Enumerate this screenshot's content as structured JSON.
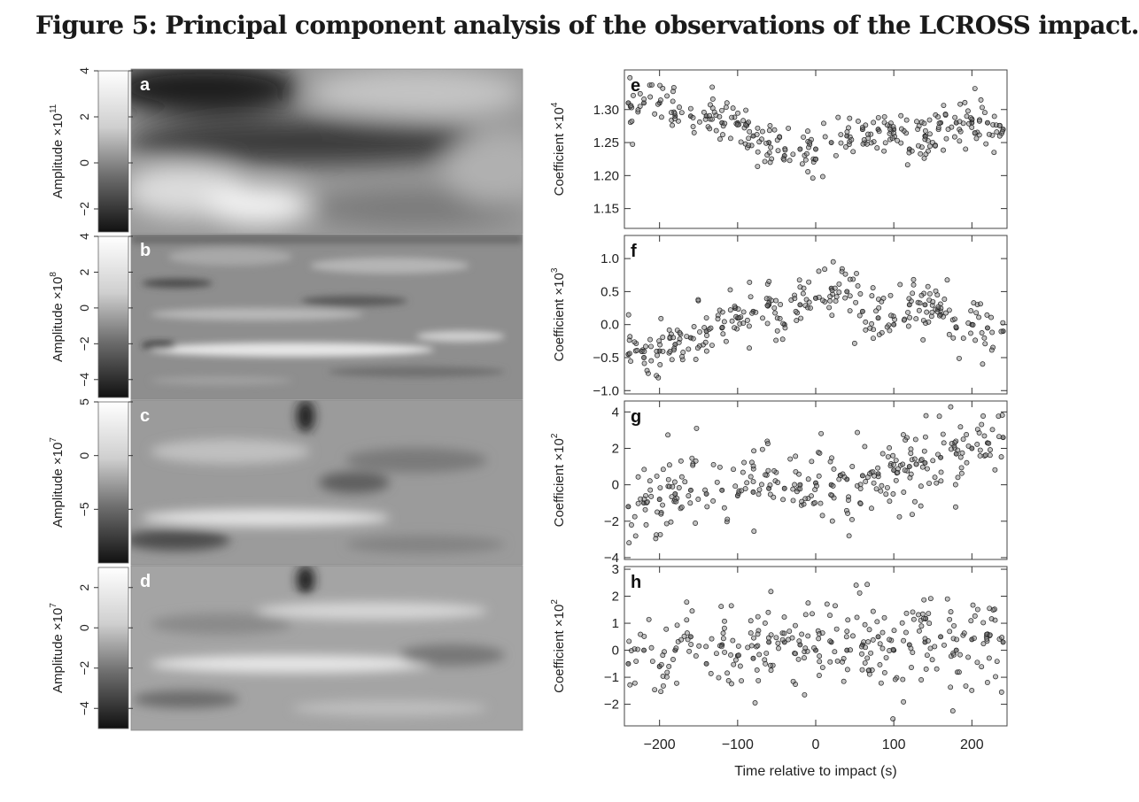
{
  "title": "Figure 5: Principal component analysis of the observations of the LCROSS impact.",
  "left_panels": [
    {
      "label": "a",
      "ylabel": "Amplitude ×10",
      "exp": "11",
      "ticks": [
        "4",
        "2",
        "0",
        "−2"
      ],
      "tick_values": [
        4,
        2,
        0,
        -2
      ],
      "range": [
        -3,
        4
      ]
    },
    {
      "label": "b",
      "ylabel": "Amplitude ×10",
      "exp": "8",
      "ticks": [
        "4",
        "2",
        "0",
        "−2",
        "−4"
      ],
      "tick_values": [
        4,
        2,
        0,
        -2,
        -4
      ],
      "range": [
        -5,
        4
      ]
    },
    {
      "label": "c",
      "ylabel": "Amplitude ×10",
      "exp": "7",
      "ticks": [
        "5",
        "0",
        "−5"
      ],
      "tick_values": [
        5,
        0,
        -5
      ],
      "range": [
        -10,
        5
      ]
    },
    {
      "label": "d",
      "ylabel": "Amplitude ×10",
      "exp": "7",
      "ticks": [
        "2",
        "0",
        "−2",
        "−4"
      ],
      "tick_values": [
        2,
        0,
        -2,
        -4
      ],
      "range": [
        -5,
        3
      ]
    }
  ],
  "chart_data": [
    {
      "type": "scatter",
      "panel": "e",
      "ylabel": "Coefficient ×10",
      "exp": "4",
      "yticks": [
        "1.30",
        "1.25",
        "1.20",
        "1.15"
      ],
      "ytick_values": [
        1.3,
        1.25,
        1.2,
        1.15
      ],
      "ylim": [
        1.12,
        1.36
      ],
      "xlim": [
        -245,
        245
      ],
      "x": [
        -240,
        -220,
        -200,
        -180,
        -160,
        -140,
        -120,
        -100,
        -80,
        -60,
        -40,
        -20,
        0,
        20,
        40,
        60,
        80,
        100,
        120,
        140,
        160,
        180,
        200,
        220,
        240
      ],
      "y": [
        1.31,
        1.31,
        1.31,
        1.29,
        1.29,
        1.29,
        1.28,
        1.28,
        1.26,
        1.25,
        1.23,
        1.24,
        1.24,
        1.25,
        1.26,
        1.27,
        1.27,
        1.27,
        1.24,
        1.26,
        1.28,
        1.28,
        1.28,
        1.28,
        1.27
      ]
    },
    {
      "type": "scatter",
      "panel": "f",
      "ylabel": "Coefficient ×10",
      "exp": "3",
      "yticks": [
        "1.0",
        "0.5",
        "0.0",
        "−0.5",
        "−1.0"
      ],
      "ytick_values": [
        1.0,
        0.5,
        0.0,
        -0.5,
        -1.0
      ],
      "ylim": [
        -1.05,
        1.35
      ],
      "xlim": [
        -245,
        245
      ],
      "x": [
        -240,
        -220,
        -200,
        -180,
        -160,
        -140,
        -120,
        -100,
        -80,
        -60,
        -40,
        -20,
        0,
        20,
        40,
        60,
        80,
        100,
        120,
        140,
        160,
        180,
        200,
        220,
        240
      ],
      "y": [
        -0.45,
        -0.5,
        -0.4,
        -0.3,
        -0.2,
        -0.1,
        -0.05,
        0.1,
        0.2,
        0.3,
        0.0,
        0.3,
        0.4,
        0.55,
        0.5,
        0.2,
        0.1,
        0.0,
        0.3,
        0.3,
        0.15,
        -0.05,
        0.0,
        -0.05,
        -0.1
      ]
    },
    {
      "type": "scatter",
      "panel": "g",
      "ylabel": "Coefficient ×10",
      "exp": "2",
      "yticks": [
        "4",
        "2",
        "0",
        "−2",
        "−4"
      ],
      "ytick_values": [
        4,
        2,
        0,
        -2,
        -4
      ],
      "ylim": [
        -4.1,
        4.6
      ],
      "xlim": [
        -245,
        245
      ],
      "x": [
        -240,
        -220,
        -200,
        -180,
        -160,
        -140,
        -120,
        -100,
        -80,
        -60,
        -40,
        -20,
        0,
        20,
        40,
        60,
        80,
        100,
        120,
        140,
        160,
        180,
        200,
        220,
        240
      ],
      "y": [
        -1.2,
        -1.0,
        -0.8,
        -0.5,
        -0.3,
        -0.5,
        -0.3,
        -0.6,
        -0.4,
        -0.2,
        -0.2,
        0.0,
        0.1,
        0.0,
        0.3,
        0.5,
        0.6,
        0.8,
        1.0,
        1.2,
        1.5,
        1.7,
        2.0,
        2.3,
        2.6
      ]
    },
    {
      "type": "scatter",
      "panel": "h",
      "ylabel": "Coefficient ×10",
      "exp": "2",
      "yticks": [
        "3",
        "2",
        "1",
        "0",
        "−1",
        "−2"
      ],
      "ytick_values": [
        3,
        2,
        1,
        0,
        -1,
        -2
      ],
      "ylim": [
        -2.8,
        3.1
      ],
      "xlim": [
        -245,
        245
      ],
      "x": [
        -240,
        -220,
        -200,
        -180,
        -160,
        -140,
        -120,
        -100,
        -80,
        -60,
        -40,
        -20,
        0,
        20,
        40,
        60,
        80,
        100,
        120,
        140,
        160,
        180,
        200,
        220,
        240
      ],
      "y": [
        -0.5,
        0.0,
        -0.6,
        0.0,
        0.5,
        -0.5,
        0.2,
        -0.2,
        -0.3,
        0.3,
        0.3,
        0.2,
        0.0,
        0.3,
        0.0,
        0.2,
        0.5,
        0.0,
        0.2,
        0.3,
        0.5,
        0.0,
        0.4,
        0.6,
        0.3
      ]
    }
  ],
  "xaxis": {
    "ticks": [
      "−200",
      "−100",
      "0",
      "100",
      "200"
    ],
    "tick_values": [
      -200,
      -100,
      0,
      100,
      200
    ],
    "label": "Time relative to impact (s)"
  }
}
